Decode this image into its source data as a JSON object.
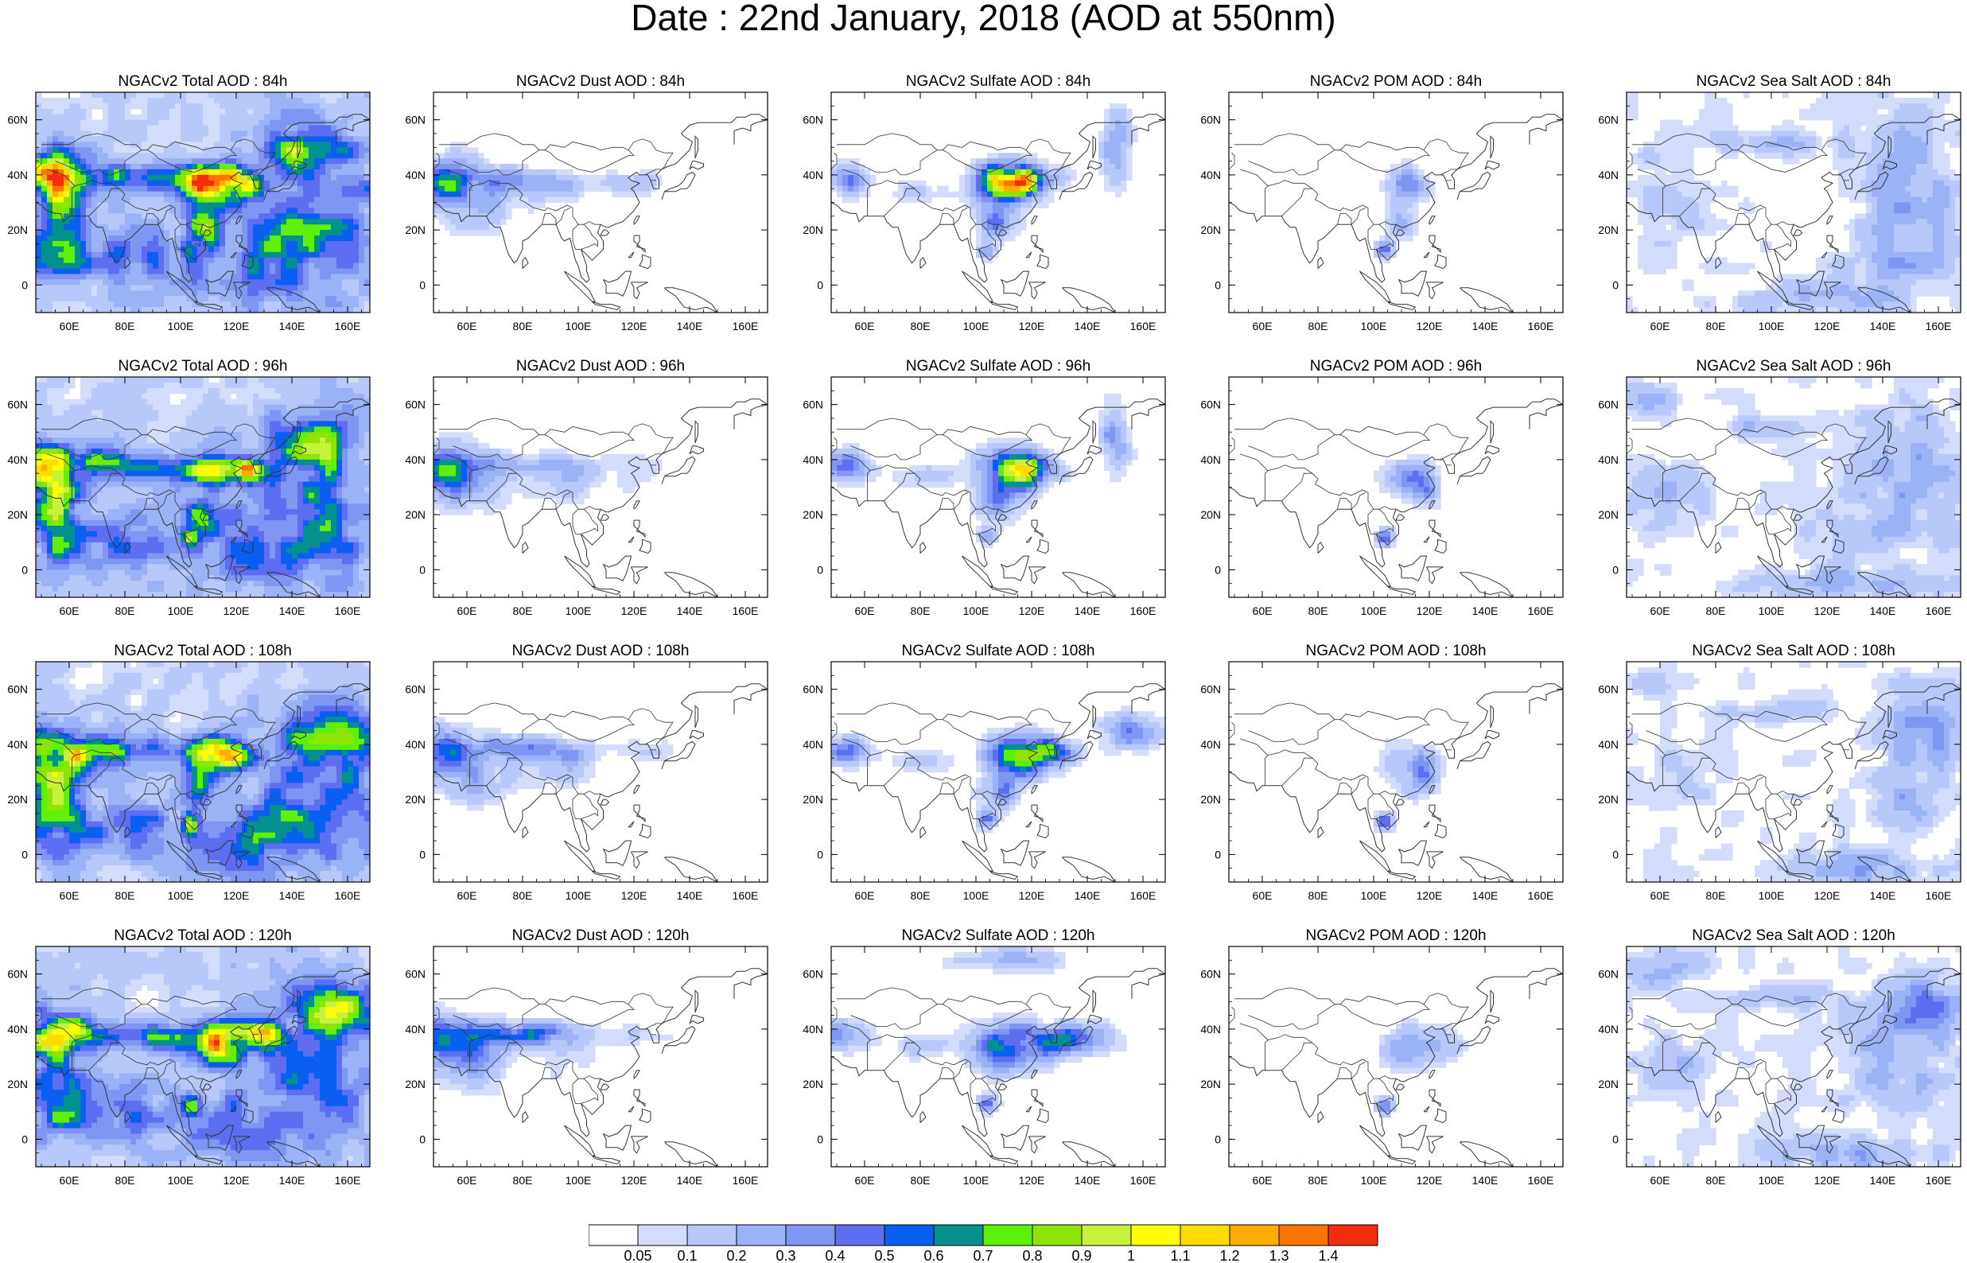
{
  "title": "Date : 22nd January, 2018 (AOD at 550nm)",
  "colors": {
    "coast": "#333333",
    "frame": "#000000",
    "levels": [
      "#ffffff",
      "#d3dcfb",
      "#b8c8fa",
      "#9cb2f7",
      "#7f97f2",
      "#5e6ef0",
      "#0a5ef0",
      "#03908e",
      "#5ff00a",
      "#8ee404",
      "#c7f23c",
      "#fffe03",
      "#fedb00",
      "#fcab00",
      "#fc7400",
      "#f42c0e"
    ]
  },
  "map_data": {
    "lon_range": [
      48,
      168
    ],
    "lat_range": [
      -10,
      70
    ],
    "lon_ticks": [
      {
        "v": 60,
        "label": "60E"
      },
      {
        "v": 80,
        "label": "80E"
      },
      {
        "v": 100,
        "label": "100E"
      },
      {
        "v": 120,
        "label": "120E"
      },
      {
        "v": 140,
        "label": "140E"
      },
      {
        "v": 160,
        "label": "160E"
      }
    ],
    "lat_ticks": [
      {
        "v": 60,
        "label": "60N"
      },
      {
        "v": 40,
        "label": "40N"
      },
      {
        "v": 20,
        "label": "20N"
      },
      {
        "v": 0,
        "label": "0"
      }
    ]
  },
  "colorbar": {
    "labels": [
      "0.05",
      "0.1",
      "0.2",
      "0.3",
      "0.4",
      "0.5",
      "0.6",
      "0.7",
      "0.8",
      "0.9",
      "1",
      "1.1",
      "1.2",
      "1.3",
      "1.4"
    ]
  },
  "panels": [
    {
      "id": "total-84",
      "title": "NGACv2 Total AOD : 84h",
      "type": "total",
      "t": 0
    },
    {
      "id": "dust-84",
      "title": "NGACv2 Dust AOD : 84h",
      "type": "dust",
      "t": 0
    },
    {
      "id": "sulfate-84",
      "title": "NGACv2 Sulfate AOD : 84h",
      "type": "sulfate",
      "t": 0
    },
    {
      "id": "pom-84",
      "title": "NGACv2 POM AOD : 84h",
      "type": "pom",
      "t": 0
    },
    {
      "id": "seasalt-84",
      "title": "NGACv2 Sea Salt AOD : 84h",
      "type": "seasalt",
      "t": 0
    },
    {
      "id": "total-96",
      "title": "NGACv2 Total AOD : 96h",
      "type": "total",
      "t": 1
    },
    {
      "id": "dust-96",
      "title": "NGACv2 Dust AOD : 96h",
      "type": "dust",
      "t": 1
    },
    {
      "id": "sulfate-96",
      "title": "NGACv2 Sulfate AOD : 96h",
      "type": "sulfate",
      "t": 1
    },
    {
      "id": "pom-96",
      "title": "NGACv2 POM AOD : 96h",
      "type": "pom",
      "t": 1
    },
    {
      "id": "seasalt-96",
      "title": "NGACv2 Sea Salt AOD : 96h",
      "type": "seasalt",
      "t": 1
    },
    {
      "id": "total-108",
      "title": "NGACv2 Total AOD : 108h",
      "type": "total",
      "t": 2
    },
    {
      "id": "dust-108",
      "title": "NGACv2 Dust AOD : 108h",
      "type": "dust",
      "t": 2
    },
    {
      "id": "sulfate-108",
      "title": "NGACv2 Sulfate AOD : 108h",
      "type": "sulfate",
      "t": 2
    },
    {
      "id": "pom-108",
      "title": "NGACv2 POM AOD : 108h",
      "type": "pom",
      "t": 2
    },
    {
      "id": "seasalt-108",
      "title": "NGACv2 Sea Salt AOD : 108h",
      "type": "seasalt",
      "t": 2
    },
    {
      "id": "total-120",
      "title": "NGACv2 Total AOD : 120h",
      "type": "total",
      "t": 3
    },
    {
      "id": "dust-120",
      "title": "NGACv2 Dust AOD : 120h",
      "type": "dust",
      "t": 3
    },
    {
      "id": "sulfate-120",
      "title": "NGACv2 Sulfate AOD : 120h",
      "type": "sulfate",
      "t": 3
    },
    {
      "id": "pom-120",
      "title": "NGACv2 POM AOD : 120h",
      "type": "pom",
      "t": 3
    },
    {
      "id": "seasalt-120",
      "title": "NGACv2 Sea Salt  AOD : 120h",
      "type": "seasalt",
      "t": 3
    }
  ]
}
